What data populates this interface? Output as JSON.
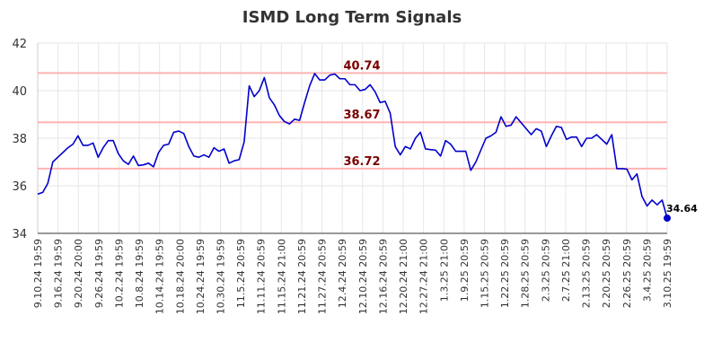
{
  "chart_data": {
    "type": "line",
    "title": "ISMD Long Term Signals",
    "xlabel": "",
    "ylabel": "",
    "ylim": [
      34,
      42
    ],
    "yticks": [
      34,
      36,
      38,
      40,
      42
    ],
    "grid": true,
    "line_color": "#0000cc",
    "signal_line_color": "#ffb3b3",
    "signal_label_color": "#7a0000",
    "xtick_labels": [
      "9.10.24 19:59",
      "9.16.24 19:59",
      "9.20.24 20:00",
      "9.26.24 19:59",
      "10.2.24 19:59",
      "10.8.24 19:59",
      "10.14.24 19:59",
      "10.18.24 20:00",
      "10.24.24 19:59",
      "10.30.24 19:59",
      "11.5.24 20:59",
      "11.11.24 20:59",
      "11.15.24 21:00",
      "11.21.24 20:59",
      "11.27.24 20:59",
      "12.4.24 20:59",
      "12.10.24 20:59",
      "12.16.24 20:59",
      "12.20.24 21:00",
      "12.27.24 21:00",
      "1.3.25 21:00",
      "1.9.25 20:59",
      "1.15.25 20:59",
      "1.22.25 20:59",
      "1.28.25 20:59",
      "2.3.25 20:59",
      "2.7.25 21:00",
      "2.13.25 20:59",
      "2.20.25 20:59",
      "2.26.25 20:59",
      "3.4.25 20:59",
      "3.10.25 19:59"
    ],
    "signals": [
      {
        "label": "40.74",
        "value": 40.74
      },
      {
        "label": "38.67",
        "value": 38.67
      },
      {
        "label": "36.72",
        "value": 36.72
      }
    ],
    "last_label": "34.64",
    "values": [
      35.65,
      35.72,
      36.1,
      37.0,
      37.2,
      37.4,
      37.6,
      37.75,
      38.1,
      37.7,
      37.7,
      37.8,
      37.2,
      37.6,
      37.9,
      37.9,
      37.35,
      37.05,
      36.9,
      37.25,
      36.85,
      36.88,
      36.95,
      36.8,
      37.4,
      37.7,
      37.75,
      38.25,
      38.3,
      38.2,
      37.65,
      37.25,
      37.2,
      37.3,
      37.2,
      37.6,
      37.45,
      37.55,
      36.95,
      37.05,
      37.1,
      37.85,
      40.2,
      39.75,
      40.0,
      40.55,
      39.7,
      39.4,
      38.95,
      38.7,
      38.6,
      38.8,
      38.75,
      39.5,
      40.2,
      40.72,
      40.45,
      40.45,
      40.65,
      40.7,
      40.5,
      40.5,
      40.25,
      40.25,
      40.0,
      40.05,
      40.25,
      39.95,
      39.5,
      39.55,
      39.05,
      37.65,
      37.3,
      37.65,
      37.55,
      38.0,
      38.25,
      37.55,
      37.52,
      37.5,
      37.25,
      37.9,
      37.75,
      37.45,
      37.45,
      37.45,
      36.65,
      37.0,
      37.5,
      38.0,
      38.1,
      38.25,
      38.9,
      38.5,
      38.55,
      38.9,
      38.65,
      38.4,
      38.15,
      38.4,
      38.3,
      37.65,
      38.1,
      38.5,
      38.45,
      37.95,
      38.05,
      38.05,
      37.65,
      38.0,
      38.0,
      38.15,
      37.95,
      37.75,
      38.15,
      36.72,
      36.72,
      36.7,
      36.25,
      36.5,
      35.55,
      35.15,
      35.4,
      35.2,
      35.4,
      34.64
    ]
  }
}
